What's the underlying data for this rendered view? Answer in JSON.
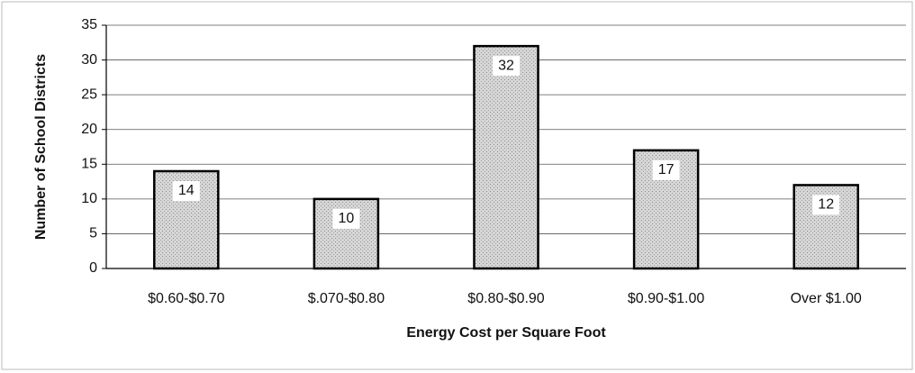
{
  "chart_data": {
    "type": "bar",
    "categories": [
      "$0.60-$0.70",
      "$.070-$0.80",
      "$0.80-$0.90",
      "$0.90-$1.00",
      "Over $1.00"
    ],
    "values": [
      14,
      10,
      32,
      17,
      12
    ],
    "color": "#c4c4c4",
    "xlabel": "Energy Cost per Square Foot",
    "ylabel": "Number of School Districts",
    "ylim": [
      0,
      35
    ],
    "yticks": [
      0,
      5,
      10,
      15,
      20,
      25,
      30,
      35
    ],
    "grid": true
  }
}
